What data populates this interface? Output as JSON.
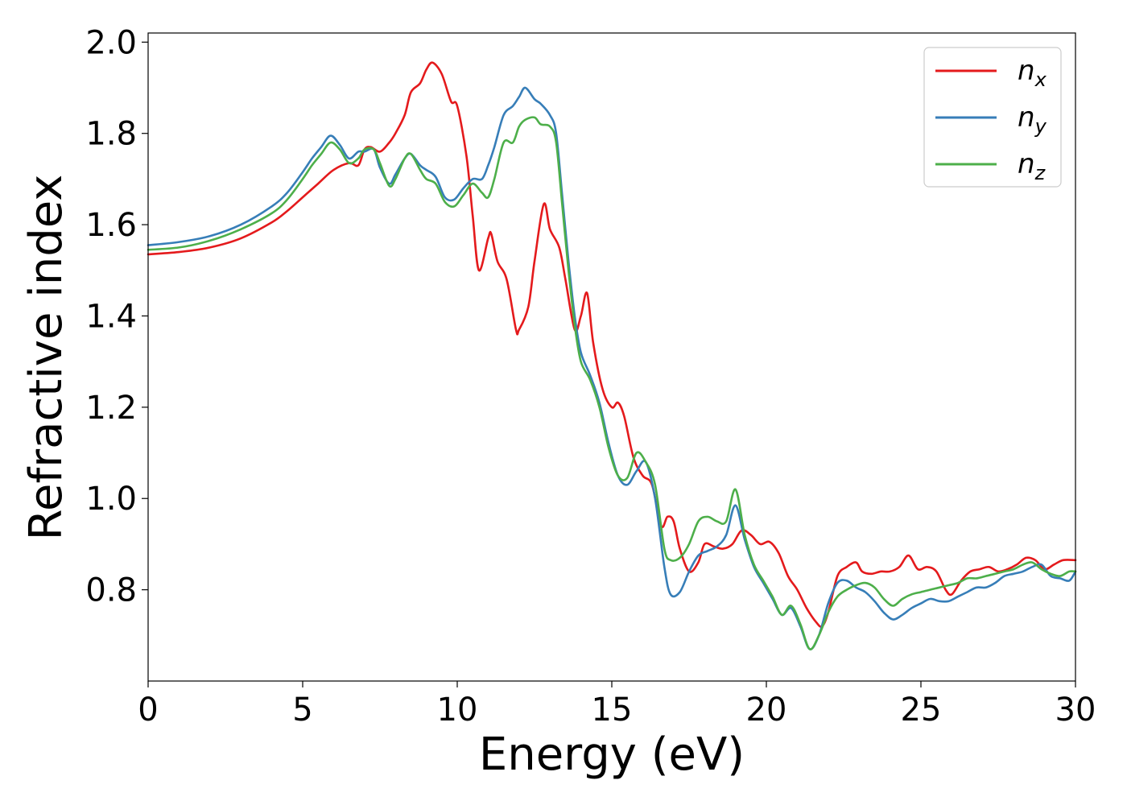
{
  "chart_data": {
    "type": "line",
    "title": "",
    "xlabel": "Energy (eV)",
    "ylabel": "Refractive index",
    "xlim": [
      0,
      30
    ],
    "ylim": [
      0.6,
      2.02
    ],
    "xticks": [
      0,
      5,
      10,
      15,
      20,
      25,
      30
    ],
    "xtick_labels": [
      "0",
      "5",
      "10",
      "15",
      "20",
      "25",
      "30"
    ],
    "yticks": [
      0.8,
      1.0,
      1.2,
      1.4,
      1.6,
      1.8,
      2.0
    ],
    "ytick_labels": [
      "0.8",
      "1.0",
      "1.2",
      "1.4",
      "1.6",
      "1.8",
      "2.0"
    ],
    "grid": false,
    "legend_position": "top-right",
    "series": [
      {
        "name": "n",
        "subscript": "x",
        "color": "#e41a1c",
        "x": [
          0,
          1,
          2,
          3,
          4,
          4.5,
          5,
          5.5,
          6,
          6.5,
          6.8,
          7,
          7.2,
          7.5,
          7.8,
          8,
          8.3,
          8.5,
          8.8,
          9.0,
          9.2,
          9.5,
          9.8,
          10.0,
          10.3,
          10.5,
          10.7,
          11.0,
          11.1,
          11.3,
          11.6,
          11.9,
          12.0,
          12.3,
          12.5,
          12.8,
          13.0,
          13.3,
          13.5,
          13.8,
          14.0,
          14.2,
          14.4,
          14.7,
          15.0,
          15.2,
          15.4,
          15.7,
          16.0,
          16.3,
          16.6,
          16.8,
          17.0,
          17.2,
          17.5,
          17.8,
          18.0,
          18.3,
          18.6,
          18.9,
          19.2,
          19.5,
          19.8,
          20.1,
          20.4,
          20.7,
          21.0,
          21.3,
          21.6,
          21.8,
          22.0,
          22.3,
          22.6,
          22.9,
          23.1,
          23.4,
          23.7,
          24.0,
          24.3,
          24.6,
          24.9,
          25.2,
          25.5,
          25.8,
          26.0,
          26.3,
          26.6,
          26.9,
          27.2,
          27.5,
          27.8,
          28.1,
          28.4,
          28.7,
          29.0,
          29.3,
          29.6,
          30.0
        ],
        "y": [
          1.535,
          1.54,
          1.55,
          1.57,
          1.605,
          1.63,
          1.66,
          1.69,
          1.72,
          1.735,
          1.73,
          1.765,
          1.77,
          1.76,
          1.78,
          1.8,
          1.84,
          1.89,
          1.91,
          1.94,
          1.955,
          1.93,
          1.87,
          1.86,
          1.75,
          1.62,
          1.5,
          1.57,
          1.58,
          1.52,
          1.48,
          1.37,
          1.37,
          1.42,
          1.52,
          1.645,
          1.59,
          1.55,
          1.48,
          1.37,
          1.4,
          1.45,
          1.34,
          1.24,
          1.2,
          1.21,
          1.18,
          1.09,
          1.05,
          1.03,
          0.94,
          0.96,
          0.95,
          0.89,
          0.84,
          0.86,
          0.9,
          0.895,
          0.89,
          0.9,
          0.93,
          0.92,
          0.9,
          0.905,
          0.88,
          0.83,
          0.8,
          0.76,
          0.73,
          0.72,
          0.75,
          0.83,
          0.85,
          0.86,
          0.84,
          0.835,
          0.84,
          0.84,
          0.85,
          0.875,
          0.845,
          0.85,
          0.84,
          0.8,
          0.79,
          0.82,
          0.84,
          0.845,
          0.85,
          0.84,
          0.845,
          0.855,
          0.87,
          0.865,
          0.845,
          0.855,
          0.865,
          0.865
        ]
      },
      {
        "name": "n",
        "subscript": "y",
        "color": "#377eb8",
        "x": [
          0,
          1,
          2,
          3,
          4,
          4.5,
          5,
          5.3,
          5.6,
          5.9,
          6.2,
          6.5,
          6.8,
          7.0,
          7.3,
          7.5,
          7.8,
          8.0,
          8.3,
          8.5,
          8.8,
          9.0,
          9.3,
          9.6,
          9.9,
          10.2,
          10.5,
          10.8,
          11.0,
          11.2,
          11.5,
          11.8,
          12.0,
          12.2,
          12.5,
          12.7,
          13.0,
          13.2,
          13.4,
          13.6,
          13.8,
          14.0,
          14.3,
          14.6,
          14.9,
          15.2,
          15.5,
          15.8,
          16.1,
          16.4,
          16.7,
          16.9,
          17.2,
          17.5,
          17.8,
          18.1,
          18.4,
          18.7,
          19.0,
          19.3,
          19.6,
          19.9,
          20.2,
          20.5,
          20.8,
          21.1,
          21.4,
          21.7,
          22.0,
          22.3,
          22.6,
          22.9,
          23.2,
          23.5,
          23.8,
          24.1,
          24.4,
          24.7,
          25.0,
          25.3,
          25.6,
          25.9,
          26.2,
          26.5,
          26.8,
          27.1,
          27.4,
          27.7,
          28.0,
          28.3,
          28.6,
          28.9,
          29.2,
          29.5,
          29.8,
          30.0
        ],
        "y": [
          1.555,
          1.562,
          1.575,
          1.6,
          1.64,
          1.67,
          1.715,
          1.745,
          1.77,
          1.795,
          1.775,
          1.745,
          1.76,
          1.76,
          1.765,
          1.725,
          1.69,
          1.71,
          1.745,
          1.755,
          1.73,
          1.72,
          1.705,
          1.66,
          1.655,
          1.68,
          1.7,
          1.7,
          1.73,
          1.77,
          1.84,
          1.86,
          1.88,
          1.9,
          1.875,
          1.865,
          1.84,
          1.8,
          1.66,
          1.52,
          1.4,
          1.32,
          1.27,
          1.21,
          1.12,
          1.05,
          1.03,
          1.06,
          1.08,
          1.0,
          0.85,
          0.79,
          0.795,
          0.84,
          0.875,
          0.885,
          0.895,
          0.92,
          0.985,
          0.91,
          0.85,
          0.815,
          0.78,
          0.745,
          0.76,
          0.72,
          0.67,
          0.7,
          0.77,
          0.815,
          0.82,
          0.805,
          0.795,
          0.775,
          0.75,
          0.735,
          0.745,
          0.76,
          0.77,
          0.78,
          0.775,
          0.775,
          0.785,
          0.795,
          0.805,
          0.805,
          0.815,
          0.83,
          0.835,
          0.84,
          0.85,
          0.855,
          0.83,
          0.825,
          0.82,
          0.84
        ]
      },
      {
        "name": "n",
        "subscript": "z",
        "color": "#4daf4a",
        "x": [
          0,
          1,
          2,
          3,
          4,
          4.5,
          5,
          5.3,
          5.6,
          5.9,
          6.2,
          6.5,
          6.8,
          7.0,
          7.3,
          7.5,
          7.8,
          8.0,
          8.3,
          8.5,
          8.8,
          9.0,
          9.3,
          9.6,
          9.9,
          10.2,
          10.5,
          10.8,
          11.0,
          11.2,
          11.5,
          11.8,
          12.0,
          12.2,
          12.5,
          12.7,
          13.0,
          13.2,
          13.4,
          13.6,
          13.8,
          14.0,
          14.3,
          14.6,
          14.9,
          15.2,
          15.5,
          15.8,
          16.1,
          16.4,
          16.7,
          16.9,
          17.2,
          17.5,
          17.8,
          18.1,
          18.4,
          18.7,
          19.0,
          19.3,
          19.6,
          19.9,
          20.2,
          20.5,
          20.8,
          21.1,
          21.4,
          21.7,
          22.0,
          22.3,
          22.6,
          22.9,
          23.2,
          23.5,
          23.8,
          24.1,
          24.4,
          24.7,
          25.0,
          25.3,
          25.6,
          25.9,
          26.2,
          26.5,
          26.8,
          27.1,
          27.4,
          27.7,
          28.0,
          28.3,
          28.6,
          28.9,
          29.2,
          29.5,
          29.8,
          30.0
        ],
        "y": [
          1.545,
          1.55,
          1.565,
          1.59,
          1.625,
          1.655,
          1.7,
          1.73,
          1.755,
          1.78,
          1.765,
          1.735,
          1.745,
          1.765,
          1.765,
          1.735,
          1.685,
          1.7,
          1.745,
          1.755,
          1.72,
          1.7,
          1.69,
          1.65,
          1.64,
          1.665,
          1.69,
          1.67,
          1.66,
          1.7,
          1.78,
          1.78,
          1.815,
          1.83,
          1.835,
          1.82,
          1.815,
          1.78,
          1.64,
          1.5,
          1.38,
          1.3,
          1.26,
          1.2,
          1.11,
          1.05,
          1.045,
          1.1,
          1.08,
          1.03,
          0.89,
          0.865,
          0.87,
          0.9,
          0.95,
          0.96,
          0.95,
          0.95,
          1.02,
          0.92,
          0.855,
          0.82,
          0.785,
          0.745,
          0.765,
          0.725,
          0.67,
          0.7,
          0.75,
          0.785,
          0.8,
          0.81,
          0.815,
          0.805,
          0.78,
          0.765,
          0.78,
          0.79,
          0.795,
          0.8,
          0.805,
          0.81,
          0.815,
          0.825,
          0.825,
          0.83,
          0.835,
          0.84,
          0.845,
          0.855,
          0.86,
          0.845,
          0.835,
          0.83,
          0.84,
          0.84
        ]
      }
    ]
  }
}
